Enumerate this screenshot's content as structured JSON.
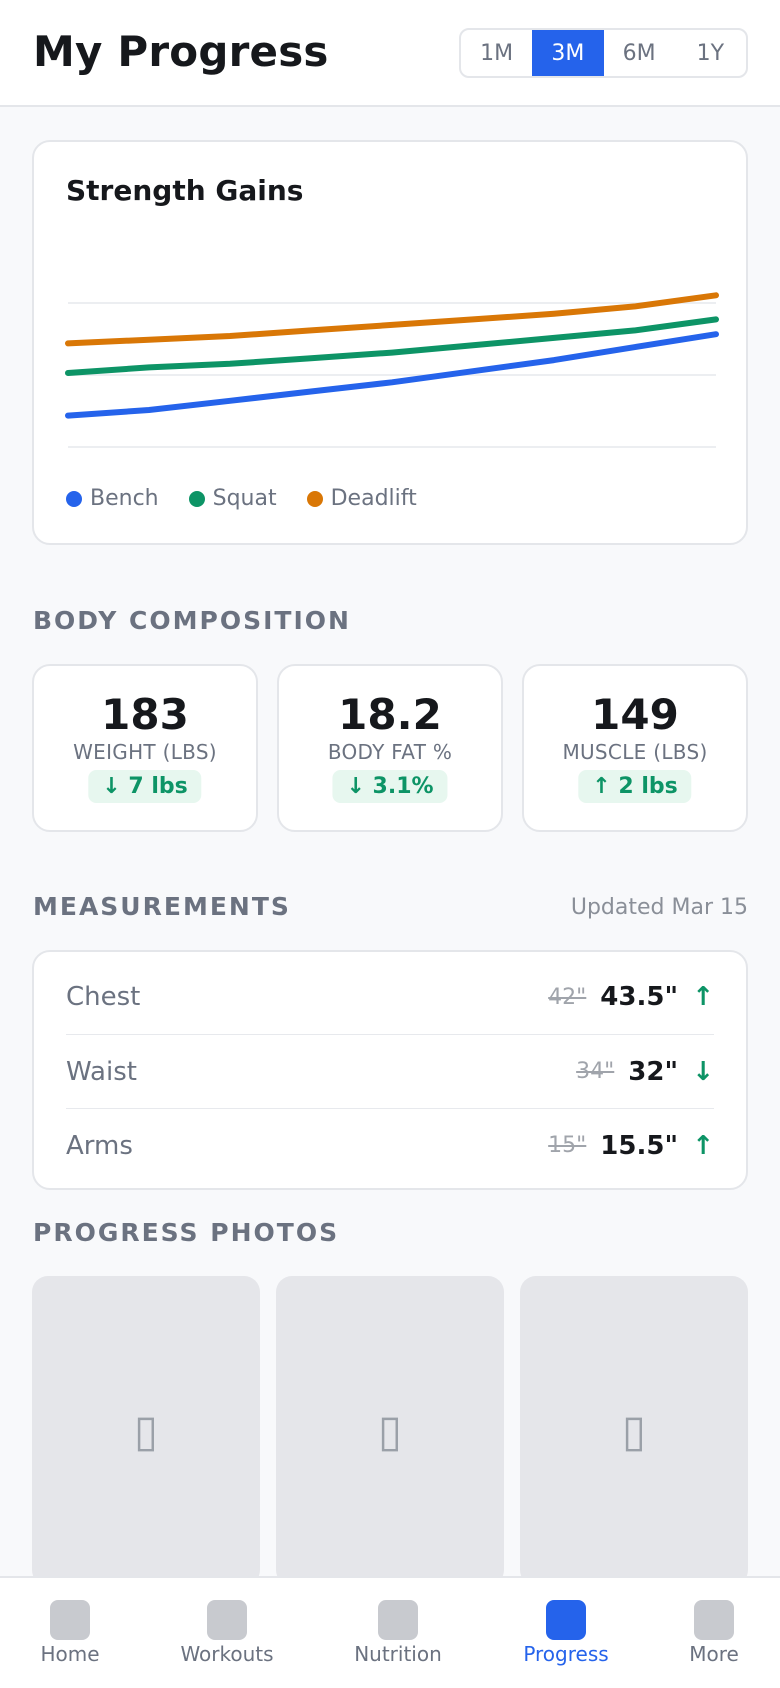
{
  "header": {
    "title": "My Progress",
    "ranges": [
      "1M",
      "3M",
      "6M",
      "1Y"
    ],
    "active_range": "3M"
  },
  "strength_card": {
    "title": "Strength Gains",
    "colors": {
      "bench": "#2563eb",
      "squat": "#0d9466",
      "deadlift": "#d97706"
    }
  },
  "chart_data": {
    "type": "line",
    "title": "Strength Gains",
    "x": [
      1,
      2,
      3,
      4,
      5,
      6,
      7,
      8,
      9
    ],
    "ylim": [
      0,
      100
    ],
    "grid": true,
    "legend_position": "bottom-left",
    "series": [
      {
        "name": "Bench",
        "color": "#2563eb",
        "values": [
          17,
          20,
          25,
          30,
          35,
          41,
          47,
          54,
          61
        ]
      },
      {
        "name": "Squat",
        "color": "#0d9466",
        "values": [
          40,
          43,
          45,
          48,
          51,
          55,
          59,
          63,
          69
        ]
      },
      {
        "name": "Deadlift",
        "color": "#d97706",
        "values": [
          56,
          58,
          60,
          63,
          66,
          69,
          72,
          76,
          82
        ]
      }
    ]
  },
  "body_composition": {
    "title": "BODY COMPOSITION",
    "stats": [
      {
        "value": "183",
        "label": "WEIGHT (LBS)",
        "change": "↓ 7 lbs"
      },
      {
        "value": "18.2",
        "label": "BODY FAT %",
        "change": "↓ 3.1%"
      },
      {
        "value": "149",
        "label": "MUSCLE (LBS)",
        "change": "↑ 2 lbs"
      }
    ]
  },
  "measurements": {
    "title": "MEASUREMENTS",
    "updated": "Updated Mar 15",
    "rows": [
      {
        "name": "Chest",
        "old": "42\"",
        "new": "43.5\"",
        "trend": "↑"
      },
      {
        "name": "Waist",
        "old": "34\"",
        "new": "32\"",
        "trend": "↓"
      },
      {
        "name": "Arms",
        "old": "15\"",
        "new": "15.5\"",
        "trend": "↑"
      }
    ]
  },
  "photos": {
    "title": "PROGRESS PHOTOS",
    "icon": "camera-icon",
    "icon_glyph": "▯"
  },
  "nav": {
    "items": [
      "Home",
      "Workouts",
      "Nutrition",
      "Progress",
      "More"
    ],
    "active": "Progress"
  }
}
